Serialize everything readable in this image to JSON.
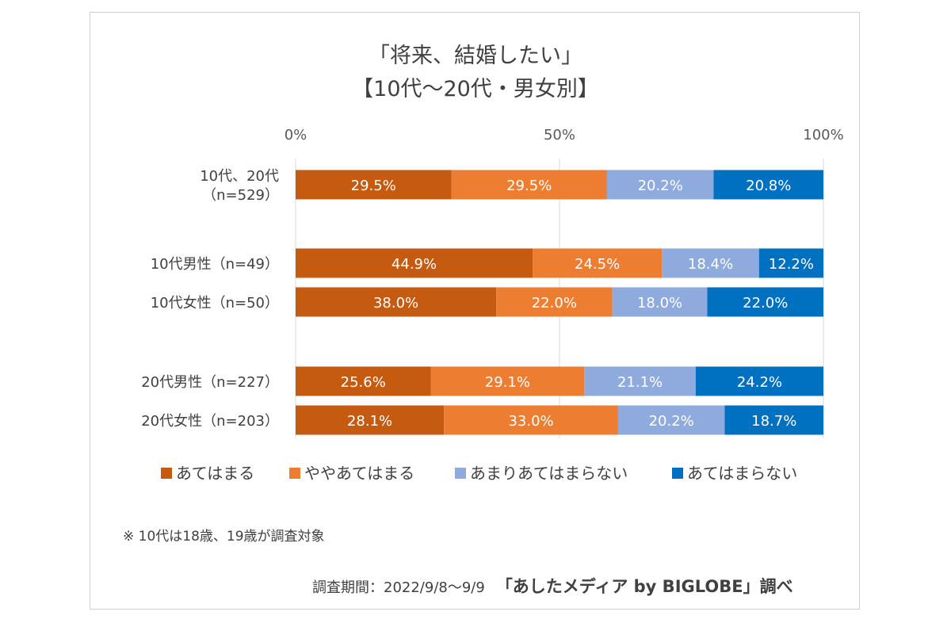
{
  "chart_data": {
    "type": "bar",
    "orientation": "horizontal",
    "stacked": true,
    "title_line1": "「将来、結婚したい」",
    "title_line2": "【10代～20代・男女別】",
    "xlim": [
      0,
      100
    ],
    "x_ticks": [
      "0%",
      "50%",
      "100%"
    ],
    "categories": [
      [
        "10代、20代",
        "（n=529）"
      ],
      [
        "10代男性（n=49）"
      ],
      [
        "10代女性（n=50）"
      ],
      [
        "20代男性（n=227）"
      ],
      [
        "20代女性（n=203）"
      ]
    ],
    "series": [
      {
        "name": "あてはまる",
        "color": "#C55A11",
        "values": [
          29.5,
          44.9,
          38.0,
          25.6,
          28.1
        ],
        "labels": [
          "29.5%",
          "44.9%",
          "38.0%",
          "25.6%",
          "28.1%"
        ]
      },
      {
        "name": "ややあてはまる",
        "color": "#ED7D31",
        "values": [
          29.5,
          24.5,
          22.0,
          29.1,
          33.0
        ],
        "labels": [
          "29.5%",
          "24.5%",
          "22.0%",
          "29.1%",
          "33.0%"
        ]
      },
      {
        "name": "あまりあてはまらない",
        "color": "#8FAADC",
        "values": [
          20.2,
          18.4,
          18.0,
          21.1,
          20.2
        ],
        "labels": [
          "20.2%",
          "18.4%",
          "18.0%",
          "21.1%",
          "20.2%"
        ]
      },
      {
        "name": "あてはまらない",
        "color": "#0070C0",
        "values": [
          20.8,
          12.2,
          22.0,
          24.2,
          18.7
        ],
        "labels": [
          "20.8%",
          "12.2%",
          "22.0%",
          "24.2%",
          "18.7%"
        ]
      }
    ],
    "grid": true,
    "legend_position": "bottom"
  },
  "footnote": "※ 10代は18歳、19歳が調査対象",
  "credit": {
    "period": "調査期間：2022/9/8～9/9",
    "source": "「あしたメディア by BIGLOBE」調べ"
  }
}
